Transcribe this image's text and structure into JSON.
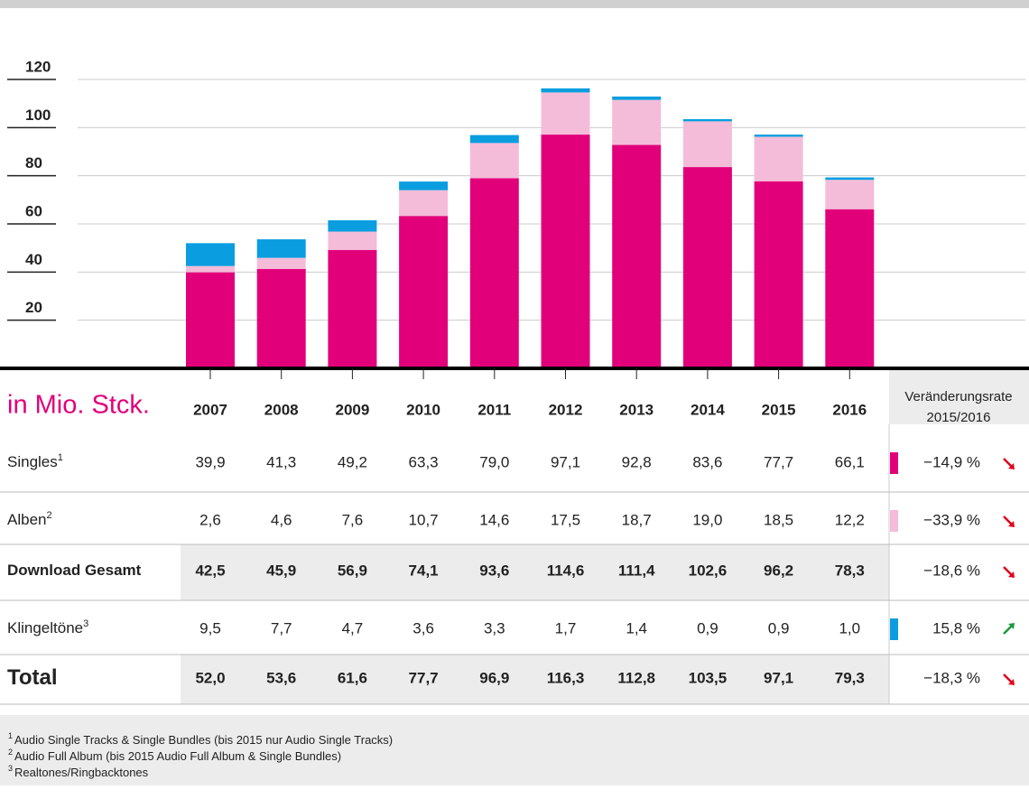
{
  "chart_data": {
    "type": "bar",
    "stacked": true,
    "unit_label": "in Mio. Stck.",
    "change_header": [
      "Veränderungsrate",
      "2015/2016"
    ],
    "categories": [
      "2007",
      "2008",
      "2009",
      "2010",
      "2011",
      "2012",
      "2013",
      "2014",
      "2015",
      "2016"
    ],
    "ylim": [
      0,
      120
    ],
    "yticks": [
      20,
      40,
      60,
      80,
      100,
      120
    ],
    "grid": true,
    "series": [
      {
        "name": "Singles",
        "note": "1",
        "color": "#e2007a",
        "values": [
          39.9,
          41.3,
          49.2,
          63.3,
          79.0,
          97.1,
          92.8,
          83.6,
          77.7,
          66.1
        ],
        "value_labels": [
          "39,9",
          "41,3",
          "49,2",
          "63,3",
          "79,0",
          "97,1",
          "92,8",
          "83,6",
          "77,7",
          "66,1"
        ],
        "change": "−14,9 %",
        "trend": "down"
      },
      {
        "name": "Alben",
        "note": "2",
        "color": "#f4bcd8",
        "values": [
          2.6,
          4.6,
          7.6,
          10.7,
          14.6,
          17.5,
          18.7,
          19.0,
          18.5,
          12.2
        ],
        "value_labels": [
          "2,6",
          "4,6",
          "7,6",
          "10,7",
          "14,6",
          "17,5",
          "18,7",
          "19,0",
          "18,5",
          "12,2"
        ],
        "change": "−33,9 %",
        "trend": "down"
      },
      {
        "name": "Klingeltöne",
        "note": "3",
        "color": "#0a9ee0",
        "values": [
          9.5,
          7.7,
          4.7,
          3.6,
          3.3,
          1.7,
          1.4,
          0.9,
          0.9,
          1.0
        ],
        "value_labels": [
          "9,5",
          "7,7",
          "4,7",
          "3,6",
          "3,3",
          "1,7",
          "1,4",
          "0,9",
          "0,9",
          "1,0"
        ],
        "change": "15,8 %",
        "trend": "up"
      }
    ],
    "totals": [
      {
        "name": "Download Gesamt",
        "value_labels": [
          "42,5",
          "45,9",
          "56,9",
          "74,1",
          "93,6",
          "114,6",
          "111,4",
          "102,6",
          "96,2",
          "78,3"
        ],
        "change": "−18,6 %",
        "trend": "down"
      },
      {
        "name": "Total",
        "value_labels": [
          "52,0",
          "53,6",
          "61,6",
          "77,7",
          "96,9",
          "116,3",
          "112,8",
          "103,5",
          "97,1",
          "79,3"
        ],
        "change": "−18,3 %",
        "trend": "down"
      }
    ]
  },
  "footnotes": [
    {
      "mark": "1",
      "text": "Audio Single Tracks & Single Bundles (bis 2015 nur Audio Single Tracks)"
    },
    {
      "mark": "2",
      "text": "Audio Full Album (bis 2015 Audio Full Album & Single Bundles)"
    },
    {
      "mark": "3",
      "text": "Realtones/Ringbacktones"
    }
  ]
}
